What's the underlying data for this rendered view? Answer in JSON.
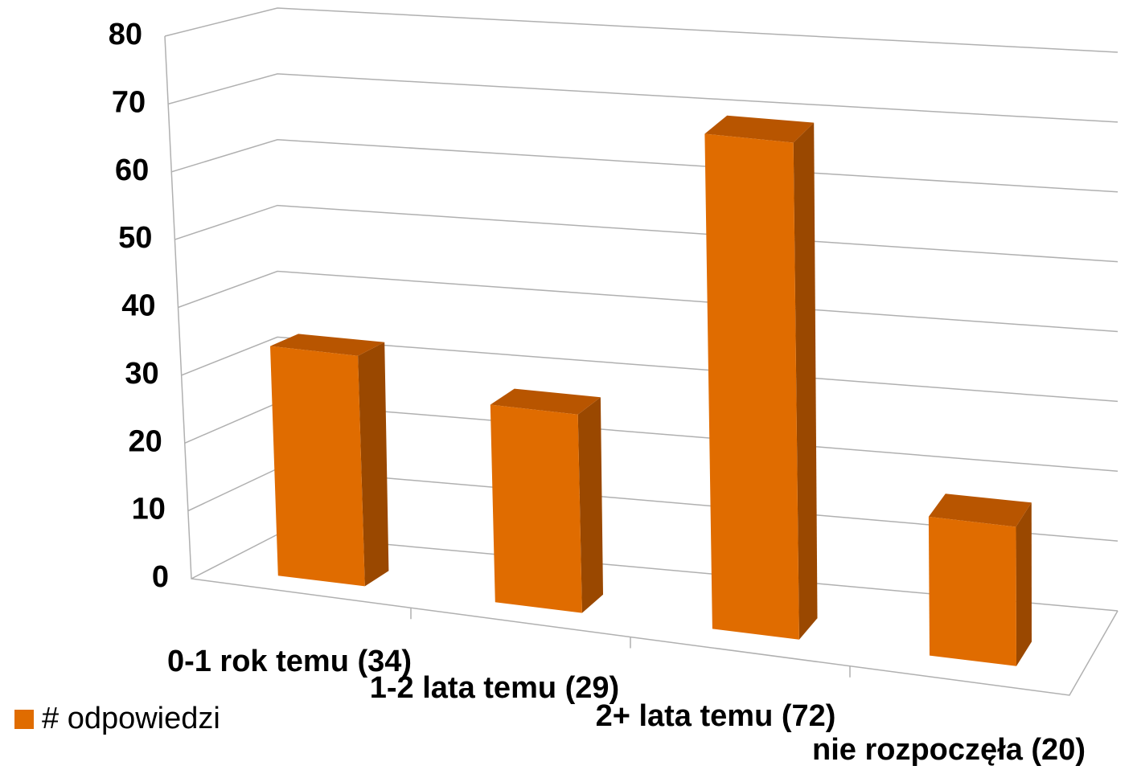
{
  "chart_data": {
    "type": "bar3d",
    "categories": [
      "0-1 rok temu (34)",
      "1-2 lata temu (29)",
      "2+ lata temu (72)",
      "nie rozpoczęła (20)"
    ],
    "series": [
      {
        "name": "# odpowiedzi",
        "color": "#e06c00",
        "values": [
          34,
          29,
          72,
          20
        ]
      }
    ],
    "ylim": [
      0,
      80
    ],
    "yticks": [
      0,
      10,
      20,
      30,
      40,
      50,
      60,
      70,
      80
    ],
    "grid": true,
    "legend": "bottom-left"
  }
}
